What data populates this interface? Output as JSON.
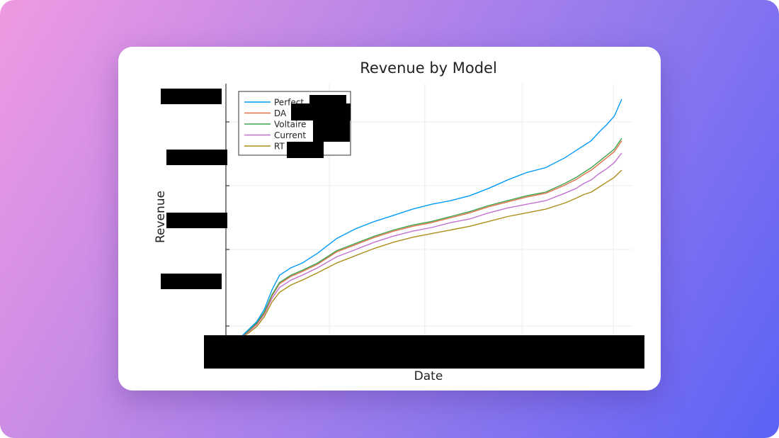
{
  "colors": {
    "backdrop_start": "#ef9ae2",
    "backdrop_end": "#5b62f6",
    "card": "#ffffff",
    "redaction": "#000000"
  },
  "chart_data": {
    "type": "line",
    "title": "Revenue by Model",
    "xlabel": "Date",
    "ylabel": "Revenue",
    "grid": true,
    "legend_position": "top-left",
    "x_tick_labels_visible": false,
    "y_tick_labels_visible": false,
    "x": [
      0,
      0.02,
      0.04,
      0.06,
      0.08,
      0.1,
      0.13,
      0.16,
      0.2,
      0.25,
      0.3,
      0.35,
      0.4,
      0.45,
      0.5,
      0.55,
      0.6,
      0.65,
      0.7,
      0.75,
      0.8,
      0.85,
      0.88,
      0.9,
      0.92,
      0.94,
      0.96,
      0.98,
      1.0
    ],
    "series": [
      {
        "name": "Perfect",
        "color": "#009af9",
        "values": [
          0.01,
          0.04,
          0.07,
          0.12,
          0.2,
          0.26,
          0.29,
          0.31,
          0.35,
          0.41,
          0.45,
          0.48,
          0.505,
          0.53,
          0.55,
          0.565,
          0.585,
          0.615,
          0.65,
          0.68,
          0.7,
          0.74,
          0.77,
          0.79,
          0.81,
          0.845,
          0.875,
          0.91,
          0.98
        ]
      },
      {
        "name": "Voltaire",
        "color": "#3da44d",
        "values": [
          0.01,
          0.035,
          0.065,
          0.11,
          0.18,
          0.23,
          0.26,
          0.28,
          0.31,
          0.36,
          0.39,
          0.42,
          0.445,
          0.465,
          0.48,
          0.5,
          0.52,
          0.545,
          0.565,
          0.585,
          0.6,
          0.635,
          0.66,
          0.68,
          0.7,
          0.725,
          0.75,
          0.775,
          0.82
        ]
      },
      {
        "name": "DA",
        "color": "#e26f46",
        "values": [
          0.01,
          0.033,
          0.062,
          0.105,
          0.175,
          0.225,
          0.255,
          0.275,
          0.305,
          0.355,
          0.385,
          0.415,
          0.44,
          0.46,
          0.475,
          0.495,
          0.515,
          0.54,
          0.56,
          0.58,
          0.595,
          0.628,
          0.652,
          0.672,
          0.69,
          0.715,
          0.74,
          0.765,
          0.81
        ]
      },
      {
        "name": "Current",
        "color": "#c271d2",
        "values": [
          0.008,
          0.03,
          0.058,
          0.1,
          0.165,
          0.21,
          0.24,
          0.26,
          0.29,
          0.335,
          0.365,
          0.395,
          0.42,
          0.44,
          0.455,
          0.475,
          0.49,
          0.515,
          0.535,
          0.55,
          0.565,
          0.595,
          0.615,
          0.635,
          0.65,
          0.675,
          0.695,
          0.72,
          0.76
        ]
      },
      {
        "name": "RT",
        "color": "#ac8d18",
        "values": [
          0.005,
          0.025,
          0.05,
          0.09,
          0.15,
          0.19,
          0.22,
          0.24,
          0.27,
          0.31,
          0.34,
          0.37,
          0.395,
          0.415,
          0.43,
          0.445,
          0.46,
          0.48,
          0.5,
          0.515,
          0.53,
          0.555,
          0.575,
          0.59,
          0.6,
          0.62,
          0.64,
          0.66,
          0.69
        ]
      }
    ]
  }
}
